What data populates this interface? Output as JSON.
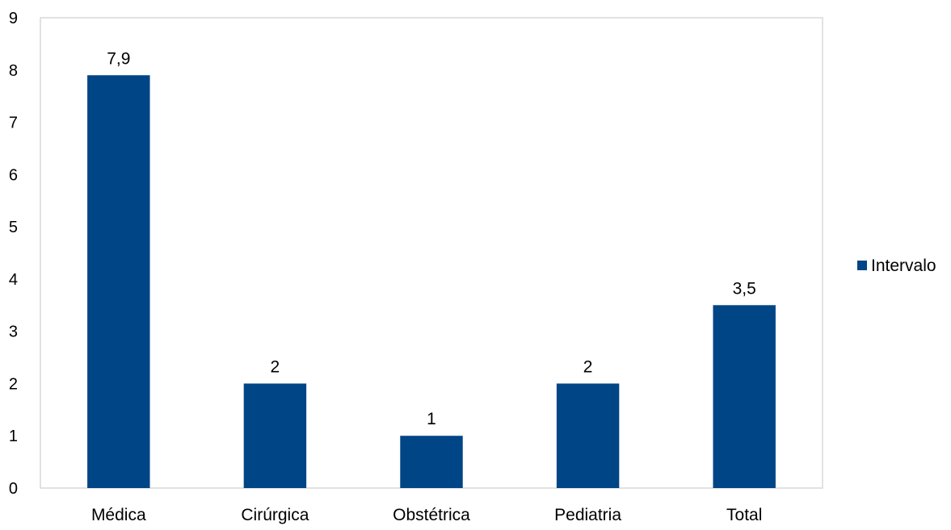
{
  "chart_data": {
    "type": "bar",
    "title": "",
    "xlabel": "",
    "ylabel": "",
    "categories": [
      "Médica",
      "Cirúrgica",
      "Obstétrica",
      "Pediatria",
      "Total"
    ],
    "series": [
      {
        "name": "Intervalo",
        "values": [
          7.9,
          2,
          1,
          2,
          3.5
        ],
        "data_labels": [
          "7,9",
          "2",
          "1",
          "2",
          "3,5"
        ],
        "color": "#004586"
      }
    ],
    "ylim": [
      0,
      9
    ],
    "yticks": [
      "0",
      "1",
      "2",
      "3",
      "4",
      "5",
      "6",
      "7",
      "8",
      "9"
    ],
    "grid": false,
    "legend_position": "right",
    "border_color": "#d9d9d9"
  }
}
